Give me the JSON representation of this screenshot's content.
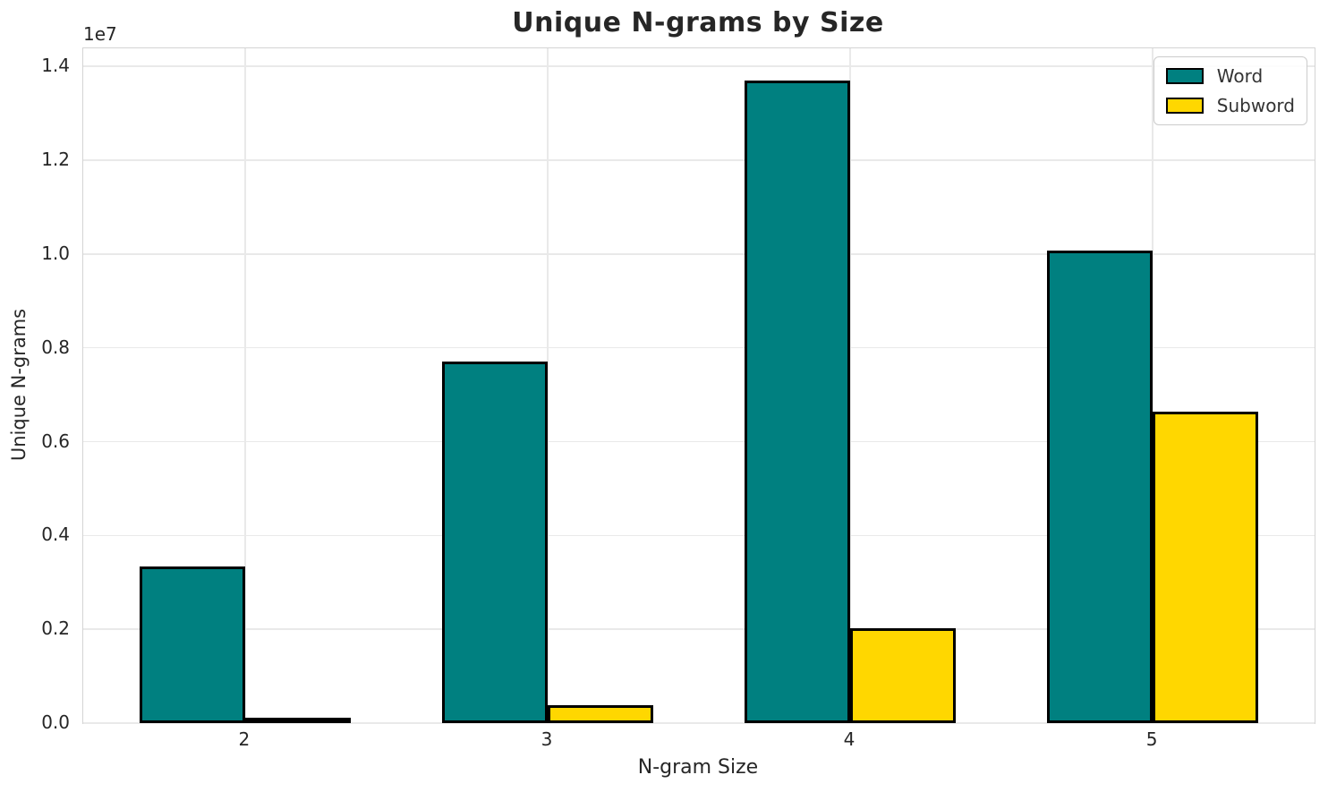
{
  "chart_data": {
    "type": "bar",
    "title": "Unique N-grams by Size",
    "xlabel": "N-gram Size",
    "ylabel": "Unique N-grams",
    "y_offset_text": "1e7",
    "categories": [
      "2",
      "3",
      "4",
      "5"
    ],
    "x": [
      2,
      3,
      4,
      5
    ],
    "series": [
      {
        "name": "Word",
        "color": "#008080",
        "values": [
          3340000,
          7710000,
          13700000,
          10070000
        ]
      },
      {
        "name": "Subword",
        "color": "#FFD700",
        "values": [
          40000,
          380000,
          2020000,
          6640000
        ]
      }
    ],
    "bar_width": 0.35,
    "edge_color": "#000000",
    "xlim": [
      1.465,
      5.535
    ],
    "ylim": [
      0,
      14385000
    ],
    "yticks": [
      {
        "value": 0,
        "label": "0.0"
      },
      {
        "value": 2000000,
        "label": "0.2"
      },
      {
        "value": 4000000,
        "label": "0.4"
      },
      {
        "value": 6000000,
        "label": "0.6"
      },
      {
        "value": 8000000,
        "label": "0.8"
      },
      {
        "value": 10000000,
        "label": "1.0"
      },
      {
        "value": 12000000,
        "label": "1.2"
      },
      {
        "value": 14000000,
        "label": "1.4"
      }
    ],
    "grid": true,
    "legend_position": "upper right",
    "colors": {
      "grid": "#e9e9e9",
      "spine": "#d4d4d4",
      "text": "#262626",
      "background": "#ffffff"
    }
  }
}
